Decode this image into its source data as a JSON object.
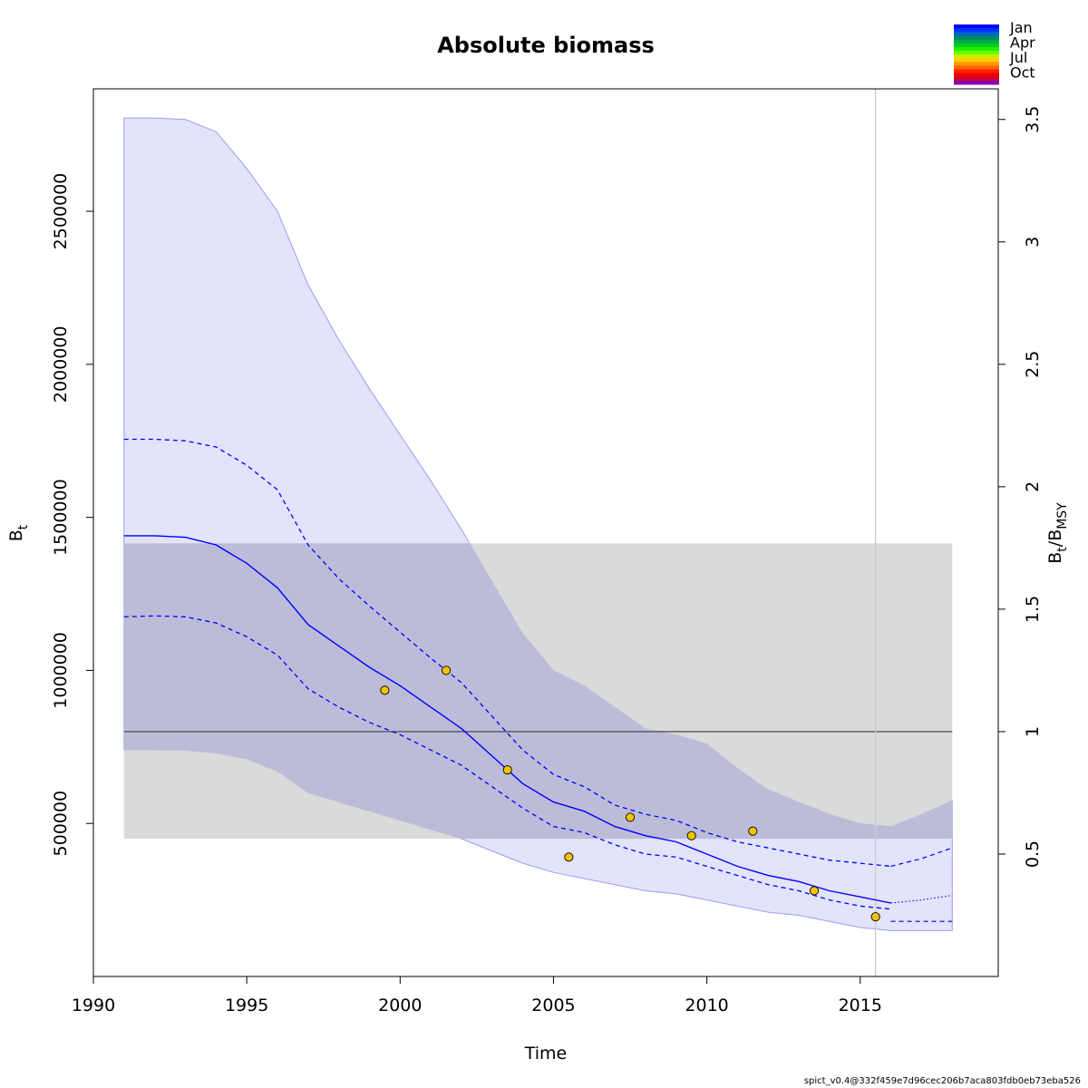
{
  "chart_data": {
    "type": "line",
    "title": "Absolute biomass",
    "xlabel": "Time",
    "ylabel": "B",
    "ylabel_sub": "t",
    "y2label": "B",
    "y2label_sub1": "t",
    "y2label_sep": "/B",
    "y2label_sub2": "MSY",
    "xlim": [
      1990,
      2019.5
    ],
    "ylim": [
      0,
      2900000
    ],
    "x_ticks": [
      1990,
      1995,
      2000,
      2005,
      2010,
      2015
    ],
    "y_ticks": [
      500000,
      1000000,
      1500000,
      2000000,
      2500000
    ],
    "y2_ticks": [
      0.5,
      1,
      1.5,
      2,
      2.5,
      3,
      3.5
    ],
    "y2_tick_labels": [
      "0.5",
      "1",
      "1.5",
      "2",
      "2.5",
      "3",
      "3.5"
    ],
    "bmsy": 800000,
    "bmsy_band": {
      "x": [
        1991,
        2018
      ],
      "lower": 450000,
      "upper": 1415000
    },
    "last_obs_year": 2015.5,
    "x": [
      1991,
      1992,
      1993,
      1994,
      1995,
      1996,
      1997,
      1998,
      1999,
      2000,
      2001,
      2002,
      2003,
      2004,
      2005,
      2006,
      2007,
      2008,
      2009,
      2010,
      2011,
      2012,
      2013,
      2014,
      2015,
      2016
    ],
    "series": [
      {
        "name": "",
        "role": "estimate",
        "values": [
          1440000,
          1440000,
          1435000,
          1410000,
          1350000,
          1270000,
          1150000,
          1080000,
          1010000,
          950000,
          880000,
          810000,
          720000,
          630000,
          570000,
          540000,
          490000,
          460000,
          440000,
          400000,
          360000,
          330000,
          310000,
          280000,
          260000,
          240000
        ]
      },
      {
        "name": "",
        "role": "estimate_ci_upper",
        "values": [
          1755000,
          1755000,
          1750000,
          1730000,
          1670000,
          1590000,
          1410000,
          1300000,
          1210000,
          1125000,
          1040000,
          960000,
          850000,
          740000,
          660000,
          620000,
          560000,
          530000,
          510000,
          470000,
          440000,
          420000,
          400000,
          380000,
          370000,
          360000
        ]
      },
      {
        "name": "",
        "role": "estimate_ci_lower",
        "values": [
          1175000,
          1178000,
          1175000,
          1155000,
          1110000,
          1050000,
          940000,
          880000,
          830000,
          790000,
          740000,
          690000,
          620000,
          550000,
          490000,
          470000,
          430000,
          400000,
          390000,
          360000,
          330000,
          300000,
          280000,
          250000,
          230000,
          220000
        ]
      },
      {
        "name": "",
        "role": "outer_upper",
        "values": [
          2805000,
          2805000,
          2800000,
          2760000,
          2640000,
          2500000,
          2260000,
          2080000,
          1920000,
          1770000,
          1620000,
          1460000,
          1290000,
          1120000,
          1000000,
          950000,
          880000,
          810000,
          790000,
          760000,
          680000,
          610000,
          570000,
          530000,
          500000,
          490000
        ]
      },
      {
        "name": "",
        "role": "outer_lower",
        "values": [
          740000,
          740000,
          738000,
          730000,
          710000,
          670000,
          600000,
          570000,
          540000,
          510000,
          480000,
          450000,
          410000,
          370000,
          340000,
          320000,
          300000,
          280000,
          270000,
          250000,
          230000,
          210000,
          200000,
          180000,
          160000,
          150000
        ]
      }
    ],
    "forecast": {
      "x": [
        2016,
        2017,
        2018
      ],
      "estimate": [
        240000,
        250000,
        265000
      ],
      "ci_upper": [
        360000,
        385000,
        420000
      ],
      "ci_lower": [
        180000,
        180000,
        180000
      ],
      "outer_upper": [
        490000,
        530000,
        575000
      ],
      "outer_lower": [
        150000,
        150000,
        150000
      ]
    },
    "observations": {
      "x": [
        1999.5,
        2001.5,
        2003.5,
        2005.5,
        2007.5,
        2009.5,
        2011.5,
        2013.5,
        2015.5
      ],
      "y": [
        935000,
        1000000,
        675000,
        390000,
        520000,
        460000,
        475000,
        280000,
        195000
      ],
      "color": "#f5c400"
    },
    "season_legend": [
      "Jan",
      "Apr",
      "Jul",
      "Oct"
    ],
    "colors": {
      "estimate": "#0000ff",
      "ci_fill": "#e3e3fb",
      "ci_edge": "#9d9df0",
      "bmsy_band": "#d3d3d3",
      "bmsy_line": "#555555",
      "overlap_fill": "#bcbcd9"
    },
    "grid": false
  },
  "footer": "spict_v0.4@332f459e7d96cec206b7aca803fdb0eb73eba526"
}
